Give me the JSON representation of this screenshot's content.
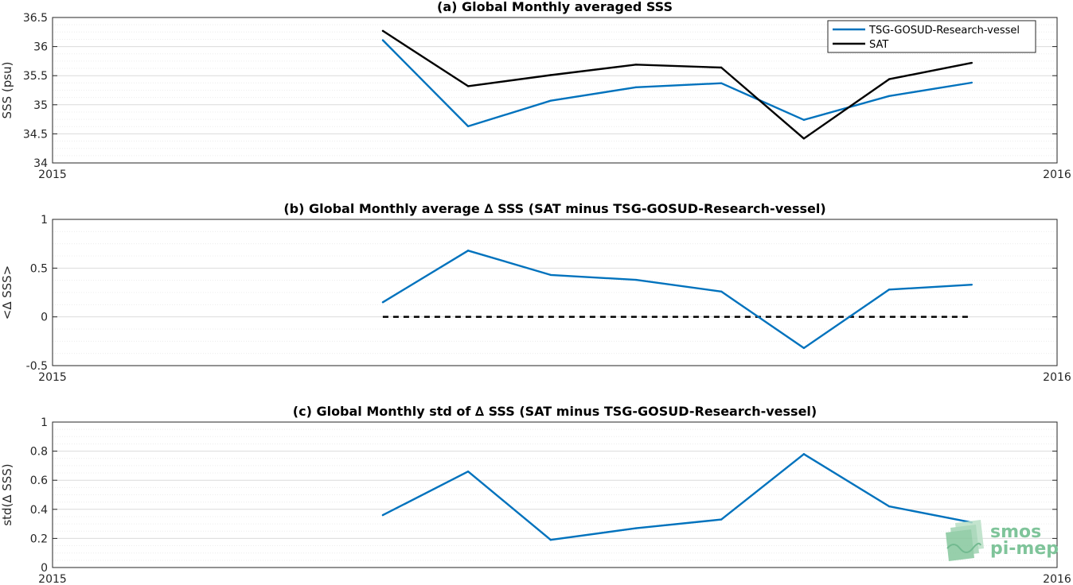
{
  "chart_data": [
    {
      "type": "line",
      "title": "(a) Global Monthly averaged SSS",
      "xlabel": "",
      "ylabel": "SSS (psu)",
      "xlim": [
        "2015-01-01",
        "2016-01-01"
      ],
      "xticks": [
        "2015",
        "2016"
      ],
      "ylim": [
        34,
        36.5
      ],
      "yticks": [
        "34",
        "34.5",
        "35",
        "35.5",
        "36",
        "36.5"
      ],
      "ytick_values": [
        34,
        34.5,
        35,
        35.5,
        36,
        36.5
      ],
      "grid": true,
      "legend": "top-right",
      "x": [
        "2015-05-01",
        "2015-06-01",
        "2015-07-01",
        "2015-08-01",
        "2015-09-01",
        "2015-10-01",
        "2015-11-01",
        "2015-12-01"
      ],
      "series": [
        {
          "name": "TSG-GOSUD-Research-vessel",
          "color": "#0072bd",
          "values": [
            36.11,
            34.63,
            35.07,
            35.3,
            35.37,
            34.74,
            35.15,
            35.38
          ]
        },
        {
          "name": "SAT",
          "color": "#000000",
          "values": [
            36.27,
            35.32,
            35.51,
            35.69,
            35.64,
            34.42,
            35.44,
            35.72
          ]
        }
      ]
    },
    {
      "type": "line",
      "title": "(b) Global Monthly average ∆ SSS (SAT minus TSG-GOSUD-Research-vessel)",
      "xlabel": "",
      "ylabel": "<∆ SSS>",
      "xlim": [
        "2015-01-01",
        "2016-01-01"
      ],
      "xticks": [
        "2015",
        "2016"
      ],
      "ylim": [
        -0.5,
        1
      ],
      "yticks": [
        "-0.5",
        "0",
        "0.5",
        "1"
      ],
      "ytick_values": [
        -0.5,
        0,
        0.5,
        1
      ],
      "grid": true,
      "x": [
        "2015-05-01",
        "2015-06-01",
        "2015-07-01",
        "2015-08-01",
        "2015-09-01",
        "2015-10-01",
        "2015-11-01",
        "2015-12-01"
      ],
      "series": [
        {
          "color": "#0072bd",
          "values": [
            0.15,
            0.68,
            0.43,
            0.38,
            0.26,
            -0.32,
            0.28,
            0.33
          ]
        }
      ],
      "reference_line": {
        "y": 0,
        "style": "dashed",
        "color": "#000000",
        "x_from": "2015-05-01",
        "x_to": "2015-12-01"
      }
    },
    {
      "type": "line",
      "title": "(c) Global Monthly std of ∆ SSS (SAT minus TSG-GOSUD-Research-vessel)",
      "xlabel": "",
      "ylabel": "std(∆ SSS)",
      "xlim": [
        "2015-01-01",
        "2016-01-01"
      ],
      "xticks": [
        "2015",
        "2016"
      ],
      "ylim": [
        0,
        1
      ],
      "yticks": [
        "0",
        "0.2",
        "0.4",
        "0.6",
        "0.8",
        "1"
      ],
      "ytick_values": [
        0,
        0.2,
        0.4,
        0.6,
        0.8,
        1
      ],
      "grid": true,
      "x": [
        "2015-05-01",
        "2015-06-01",
        "2015-07-01",
        "2015-08-01",
        "2015-09-01",
        "2015-10-01",
        "2015-11-01",
        "2015-12-01"
      ],
      "series": [
        {
          "color": "#0072bd",
          "values": [
            0.36,
            0.66,
            0.19,
            0.27,
            0.33,
            0.78,
            0.42,
            0.31
          ]
        }
      ]
    }
  ],
  "logo": {
    "line1": "smos",
    "line2": "pi-mep",
    "color": "#7fc49a"
  }
}
